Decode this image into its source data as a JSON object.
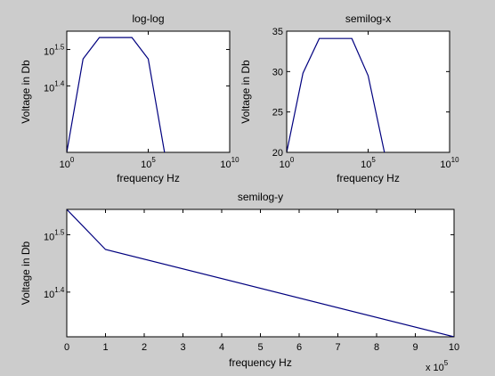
{
  "figure": {
    "background": "#cccccc",
    "line_color": "#00007f"
  },
  "chart_data": [
    {
      "id": "loglog",
      "type": "line",
      "title": "log-log",
      "xlabel": "frequency Hz",
      "ylabel": "Voltage in Db",
      "xscale": "log",
      "yscale": "log",
      "xlim": [
        1,
        10000000000
      ],
      "ylim": [
        16.5,
        35.5
      ],
      "grid": false,
      "xticks": [
        {
          "value": 1,
          "base": "10",
          "exp": "0"
        },
        {
          "value": 100000,
          "base": "10",
          "exp": "5"
        },
        {
          "value": 10000000000,
          "base": "10",
          "exp": "10"
        }
      ],
      "yticks": [
        {
          "value": 25.12,
          "base": "10",
          "exp": "1.4"
        },
        {
          "value": 31.62,
          "base": "10",
          "exp": "1.5"
        }
      ],
      "series": [
        {
          "color": "#00007f",
          "x": [
            1,
            10,
            100,
            1000,
            10000,
            100000,
            1000000
          ],
          "y": [
            16.5,
            29.8,
            34.1,
            34.1,
            34.1,
            29.8,
            16.5
          ]
        }
      ]
    },
    {
      "id": "semilogx",
      "type": "line",
      "title": "semilog-x",
      "xlabel": "frequency Hz",
      "ylabel": "Voltage in Db",
      "xscale": "log",
      "yscale": "linear",
      "xlim": [
        1,
        10000000000
      ],
      "ylim": [
        20,
        35
      ],
      "grid": false,
      "xticks": [
        {
          "value": 1,
          "base": "10",
          "exp": "0"
        },
        {
          "value": 100000,
          "base": "10",
          "exp": "5"
        },
        {
          "value": 10000000000,
          "base": "10",
          "exp": "10"
        }
      ],
      "yticks": [
        {
          "value": 20,
          "label": "20"
        },
        {
          "value": 25,
          "label": "25"
        },
        {
          "value": 30,
          "label": "30"
        },
        {
          "value": 35,
          "label": "35"
        }
      ],
      "series": [
        {
          "color": "#00007f",
          "x": [
            1,
            10,
            100,
            1000,
            10000,
            100000,
            1000000
          ],
          "y": [
            20,
            29.8,
            34.1,
            34.1,
            34.1,
            29.5,
            20
          ]
        }
      ]
    },
    {
      "id": "semilogy",
      "type": "line",
      "title": "semilog-y",
      "xlabel": "frequency Hz",
      "ylabel": "Voltage in Db",
      "xscale": "linear",
      "yscale": "log",
      "xlim": [
        0,
        1000000
      ],
      "ylim": [
        21,
        35
      ],
      "grid": false,
      "x_multiplier": {
        "base": "x 10",
        "exp": "5"
      },
      "xticks": [
        {
          "value": 0,
          "label": "0"
        },
        {
          "value": 100000,
          "label": "1"
        },
        {
          "value": 200000,
          "label": "2"
        },
        {
          "value": 300000,
          "label": "3"
        },
        {
          "value": 400000,
          "label": "4"
        },
        {
          "value": 500000,
          "label": "5"
        },
        {
          "value": 600000,
          "label": "6"
        },
        {
          "value": 700000,
          "label": "7"
        },
        {
          "value": 800000,
          "label": "8"
        },
        {
          "value": 900000,
          "label": "9"
        },
        {
          "value": 1000000,
          "label": "10"
        }
      ],
      "yticks": [
        {
          "value": 25.12,
          "base": "10",
          "exp": "1.4"
        },
        {
          "value": 31.62,
          "base": "10",
          "exp": "1.5"
        }
      ],
      "series": [
        {
          "color": "#00007f",
          "x": [
            0,
            100000,
            1000000
          ],
          "y": [
            35,
            29.8,
            21
          ]
        }
      ]
    }
  ]
}
